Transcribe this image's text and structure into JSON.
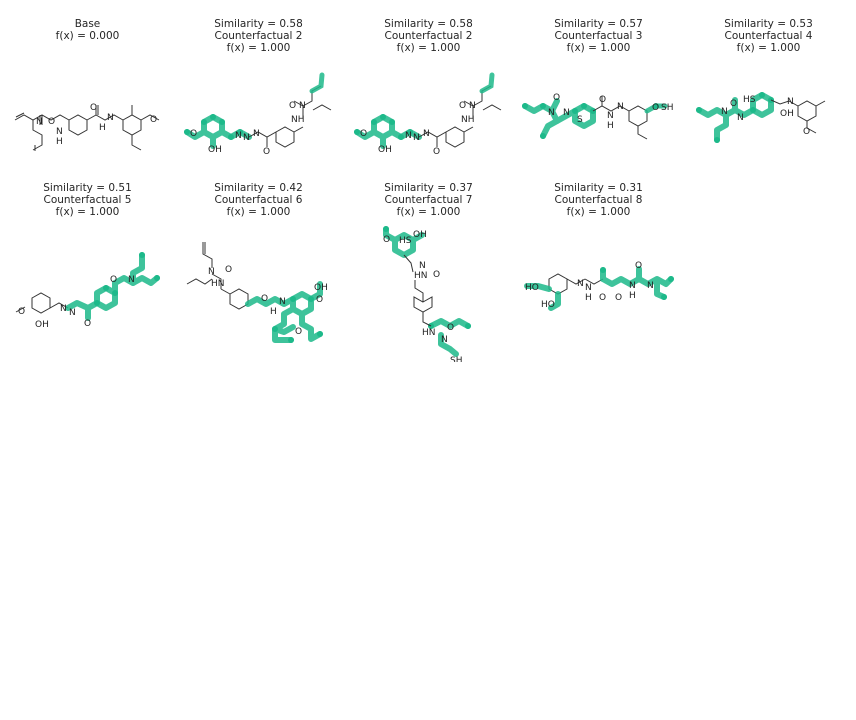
{
  "colors": {
    "highlight": "#1db98a",
    "bond": "#333333",
    "background": "#ffffff"
  },
  "panels": [
    {
      "similarity": "Base",
      "label": "",
      "fx": "f(x) = 0.000"
    },
    {
      "similarity": "Similarity = 0.58",
      "label": "Counterfactual 2",
      "fx": "f(x) = 1.000"
    },
    {
      "similarity": "Similarity = 0.58",
      "label": "Counterfactual 2",
      "fx": "f(x) = 1.000"
    },
    {
      "similarity": "Similarity = 0.57",
      "label": "Counterfactual 3",
      "fx": "f(x) = 1.000"
    },
    {
      "similarity": "Similarity = 0.53",
      "label": "Counterfactual 4",
      "fx": "f(x) = 1.000"
    },
    {
      "similarity": "Similarity = 0.51",
      "label": "Counterfactual 5",
      "fx": "f(x) = 1.000"
    },
    {
      "similarity": "Similarity = 0.42",
      "label": "Counterfactual 6",
      "fx": "f(x) = 1.000"
    },
    {
      "similarity": "Similarity = 0.37",
      "label": "Counterfactual 7",
      "fx": "f(x) = 1.000"
    },
    {
      "similarity": "Similarity = 0.31",
      "label": "Counterfactual 8",
      "fx": "f(x) = 1.000"
    }
  ],
  "atoms": {
    "p0": [
      "O",
      "N",
      "N",
      "H",
      "N",
      "H",
      "O",
      "O"
    ],
    "p1": [
      "O",
      "OH",
      "N",
      "N",
      "N",
      "O",
      "O",
      "N",
      "NH"
    ],
    "p2": [
      "O",
      "OH",
      "N",
      "N",
      "N",
      "O",
      "O",
      "N",
      "NH"
    ],
    "p3": [
      "O",
      "N",
      "N",
      "S",
      "O",
      "N",
      "H",
      "N",
      "O",
      "SH"
    ],
    "p4": [
      "HS",
      "N",
      "N",
      "OH",
      "O",
      "N",
      "O"
    ],
    "p5": [
      "O",
      "OH",
      "N",
      "N",
      "O",
      "O",
      "N"
    ],
    "p6": [
      "N",
      "O",
      "HN",
      "O",
      "N",
      "H",
      "O",
      "O",
      "OH"
    ],
    "p7": [
      "O",
      "HS",
      "OH",
      "N",
      "HN",
      "O",
      "HN",
      "O",
      "N",
      "SH"
    ],
    "p8": [
      "HO",
      "HO",
      "N",
      "N",
      "H",
      "O",
      "O",
      "N",
      "H",
      "O",
      "N"
    ]
  }
}
